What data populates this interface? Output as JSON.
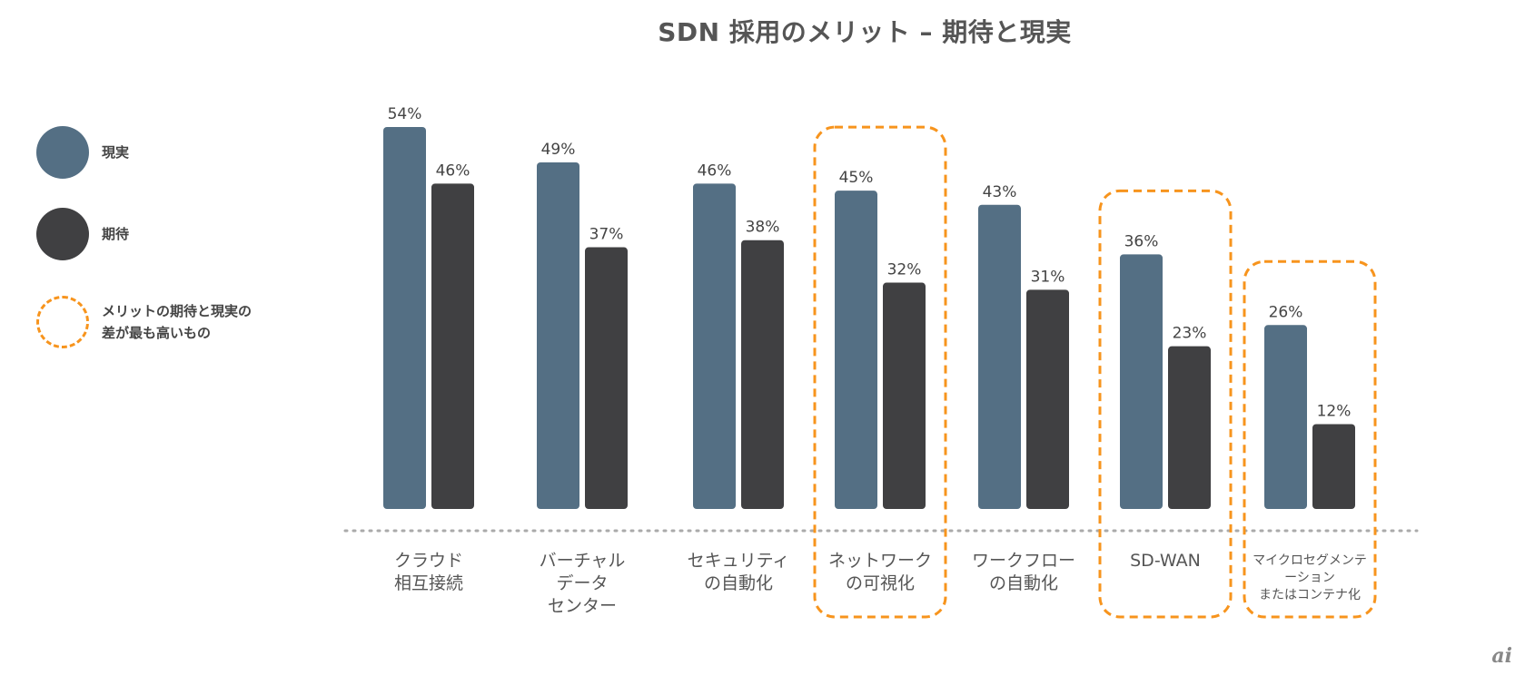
{
  "chart_data": {
    "type": "bar",
    "title": "SDN 採用のメリット – 期待と現実",
    "xlabel": "",
    "ylabel": "",
    "ylim": [
      0,
      54
    ],
    "grid": false,
    "legend_position": "left",
    "categories": [
      [
        "クラウド",
        "相互接続"
      ],
      [
        "バーチャル",
        "データ",
        "センター"
      ],
      [
        "セキュリティ",
        "の自動化"
      ],
      [
        "ネットワーク",
        "の可視化"
      ],
      [
        "ワークフロー",
        "の自動化"
      ],
      [
        "SD-WAN"
      ],
      [
        "マイクロセグメンテ",
        "ーション",
        "またはコンテナ化"
      ]
    ],
    "series": [
      {
        "name": "現実",
        "color": "#546f84",
        "values": [
          54,
          49,
          46,
          45,
          43,
          36,
          26
        ]
      },
      {
        "name": "期待",
        "color": "#404042",
        "values": [
          46,
          37,
          38,
          32,
          31,
          23,
          12
        ]
      }
    ],
    "value_suffix": "%",
    "highlighted_categories": [
      3,
      5,
      6
    ],
    "highlight_color": "#f7941d",
    "highlight_legend": [
      "メリットの期待と現実の",
      "差が最も高いもの"
    ]
  },
  "legend": {
    "reality": "現実",
    "expectation": "期待",
    "highlight_line1": "メリットの期待と現実の",
    "highlight_line2": "差が最も高いもの"
  },
  "logo_text": "ai"
}
